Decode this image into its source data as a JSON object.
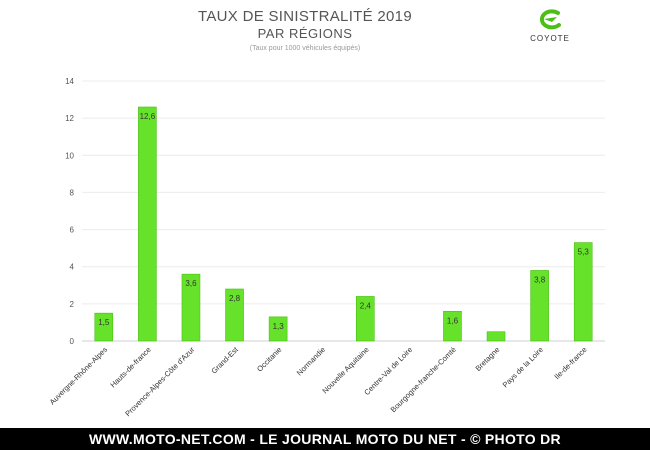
{
  "chart_data": {
    "type": "bar",
    "title": "TAUX DE SINISTRALITÉ 2019",
    "subtitle": "PAR RÉGIONS",
    "note": "(Taux pour 1000 véhicules équipés)",
    "categories": [
      "Auvergne-Rhône-Alpes",
      "Hauts-de-france",
      "Provence-Alpes-Côte d'Azur",
      "Grand-Est",
      "Occitanie",
      "Normandie",
      "Nouvelle Aquitaine",
      "Centre-Val de Loire",
      "Bourgogne-franche-Comté",
      "Bretagne",
      "Pays de la Loire",
      "Ile-de-france"
    ],
    "values": [
      1.5,
      12.6,
      3.6,
      2.8,
      1.3,
      0,
      2.4,
      0,
      1.6,
      0.5,
      3.8,
      5.3
    ],
    "data_labels": [
      "1,5",
      "12,6",
      "3,6",
      "2,8",
      "1,3",
      "",
      "2,4",
      "",
      "1,6",
      "",
      "3,8",
      "5,3"
    ],
    "yticks": [
      "0",
      "2",
      "4",
      "6",
      "8",
      "10",
      "12",
      "14"
    ],
    "ylim": [
      0,
      14
    ],
    "grid": true,
    "legend": "none",
    "bar_color": "#66e22a",
    "bar_border": "#4cbf17"
  },
  "logo": {
    "name": "coyote-logo-icon",
    "text": "COYOTE",
    "color": "#4cbf17"
  },
  "footer": {
    "text": "WWW.MOTO-NET.COM - LE JOURNAL MOTO DU NET - © PHOTO DR"
  }
}
